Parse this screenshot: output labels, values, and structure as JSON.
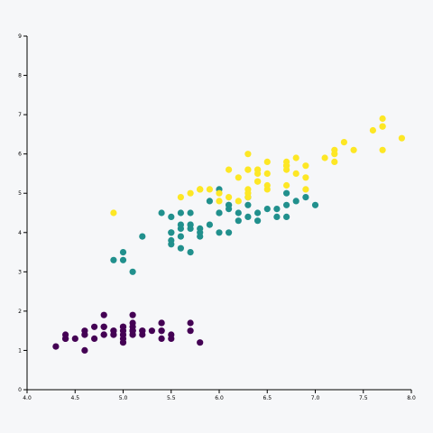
{
  "chart_data": {
    "type": "scatter",
    "xlim": [
      4.0,
      8.0
    ],
    "ylim": [
      0,
      9
    ],
    "x_ticks": [
      "4.0",
      "4.5",
      "5.0",
      "5.5",
      "6.0",
      "6.5",
      "7.0",
      "7.5",
      "8.0"
    ],
    "y_ticks": [
      "0",
      "1",
      "2",
      "3",
      "4",
      "5",
      "6",
      "7",
      "8",
      "9"
    ],
    "grid": false,
    "legend": "none",
    "series": [
      {
        "color": "#440154",
        "points": [
          [
            5.1,
            1.4
          ],
          [
            4.9,
            1.4
          ],
          [
            4.7,
            1.3
          ],
          [
            4.6,
            1.5
          ],
          [
            5.0,
            1.4
          ],
          [
            5.4,
            1.7
          ],
          [
            4.6,
            1.4
          ],
          [
            5.0,
            1.5
          ],
          [
            4.4,
            1.4
          ],
          [
            4.9,
            1.5
          ],
          [
            5.4,
            1.5
          ],
          [
            4.8,
            1.6
          ],
          [
            4.8,
            1.4
          ],
          [
            4.3,
            1.1
          ],
          [
            5.8,
            1.2
          ],
          [
            5.7,
            1.5
          ],
          [
            5.4,
            1.3
          ],
          [
            5.1,
            1.4
          ],
          [
            5.7,
            1.7
          ],
          [
            5.1,
            1.5
          ],
          [
            5.4,
            1.7
          ],
          [
            5.1,
            1.5
          ],
          [
            4.6,
            1.0
          ],
          [
            5.1,
            1.7
          ],
          [
            4.8,
            1.9
          ],
          [
            5.0,
            1.6
          ],
          [
            5.0,
            1.6
          ],
          [
            5.2,
            1.5
          ],
          [
            5.2,
            1.4
          ],
          [
            4.7,
            1.6
          ],
          [
            4.8,
            1.6
          ],
          [
            5.4,
            1.5
          ],
          [
            5.2,
            1.5
          ],
          [
            5.5,
            1.4
          ],
          [
            4.9,
            1.5
          ],
          [
            5.0,
            1.2
          ],
          [
            5.5,
            1.3
          ],
          [
            4.9,
            1.4
          ],
          [
            4.4,
            1.3
          ],
          [
            5.1,
            1.5
          ],
          [
            5.0,
            1.3
          ],
          [
            4.5,
            1.3
          ],
          [
            4.4,
            1.3
          ],
          [
            5.0,
            1.6
          ],
          [
            5.1,
            1.9
          ],
          [
            4.8,
            1.4
          ],
          [
            5.1,
            1.6
          ],
          [
            4.6,
            1.4
          ],
          [
            5.3,
            1.5
          ],
          [
            5.0,
            1.4
          ]
        ]
      },
      {
        "color": "#21908d",
        "points": [
          [
            7.0,
            4.7
          ],
          [
            6.4,
            4.5
          ],
          [
            6.9,
            4.9
          ],
          [
            5.5,
            4.0
          ],
          [
            6.5,
            4.6
          ],
          [
            5.7,
            4.5
          ],
          [
            6.3,
            4.7
          ],
          [
            4.9,
            3.3
          ],
          [
            6.6,
            4.6
          ],
          [
            5.2,
            3.9
          ],
          [
            5.0,
            3.5
          ],
          [
            5.9,
            4.2
          ],
          [
            6.0,
            4.0
          ],
          [
            6.1,
            4.7
          ],
          [
            5.6,
            3.6
          ],
          [
            6.7,
            4.4
          ],
          [
            5.6,
            4.5
          ],
          [
            5.8,
            4.1
          ],
          [
            6.2,
            4.5
          ],
          [
            5.6,
            3.9
          ],
          [
            5.9,
            4.8
          ],
          [
            6.1,
            4.0
          ],
          [
            6.3,
            4.9
          ],
          [
            6.1,
            4.7
          ],
          [
            6.4,
            4.3
          ],
          [
            6.6,
            4.4
          ],
          [
            6.8,
            4.8
          ],
          [
            6.7,
            5.0
          ],
          [
            6.0,
            4.5
          ],
          [
            5.7,
            3.5
          ],
          [
            5.5,
            3.8
          ],
          [
            5.5,
            3.7
          ],
          [
            5.8,
            3.9
          ],
          [
            6.0,
            5.1
          ],
          [
            5.4,
            4.5
          ],
          [
            6.0,
            4.5
          ],
          [
            6.7,
            4.7
          ],
          [
            6.3,
            4.4
          ],
          [
            5.6,
            4.1
          ],
          [
            5.5,
            4.0
          ],
          [
            5.5,
            4.4
          ],
          [
            6.1,
            4.6
          ],
          [
            5.8,
            4.0
          ],
          [
            5.0,
            3.3
          ],
          [
            5.6,
            4.2
          ],
          [
            5.7,
            4.2
          ],
          [
            5.7,
            4.2
          ],
          [
            6.2,
            4.3
          ],
          [
            5.1,
            3.0
          ],
          [
            5.7,
            4.1
          ]
        ]
      },
      {
        "color": "#fde725",
        "points": [
          [
            6.3,
            6.0
          ],
          [
            5.8,
            5.1
          ],
          [
            7.1,
            5.9
          ],
          [
            6.3,
            5.6
          ],
          [
            6.5,
            5.8
          ],
          [
            7.6,
            6.6
          ],
          [
            4.9,
            4.5
          ],
          [
            7.3,
            6.3
          ],
          [
            6.7,
            5.8
          ],
          [
            7.2,
            6.1
          ],
          [
            6.5,
            5.1
          ],
          [
            6.4,
            5.3
          ],
          [
            6.8,
            5.5
          ],
          [
            5.7,
            5.0
          ],
          [
            5.8,
            5.1
          ],
          [
            6.4,
            5.3
          ],
          [
            6.5,
            5.5
          ],
          [
            7.7,
            6.7
          ],
          [
            7.7,
            6.9
          ],
          [
            6.0,
            5.0
          ],
          [
            6.9,
            5.7
          ],
          [
            5.6,
            4.9
          ],
          [
            7.7,
            6.7
          ],
          [
            6.3,
            4.9
          ],
          [
            6.7,
            5.7
          ],
          [
            7.2,
            6.0
          ],
          [
            6.2,
            4.8
          ],
          [
            6.1,
            4.9
          ],
          [
            6.4,
            5.6
          ],
          [
            7.2,
            5.8
          ],
          [
            7.4,
            6.1
          ],
          [
            7.9,
            6.4
          ],
          [
            6.4,
            5.6
          ],
          [
            6.3,
            5.1
          ],
          [
            6.1,
            5.6
          ],
          [
            7.7,
            6.1
          ],
          [
            6.3,
            5.6
          ],
          [
            6.4,
            5.5
          ],
          [
            6.0,
            4.8
          ],
          [
            6.9,
            5.4
          ],
          [
            6.7,
            5.6
          ],
          [
            6.9,
            5.1
          ],
          [
            5.8,
            5.1
          ],
          [
            6.8,
            5.9
          ],
          [
            6.7,
            5.7
          ],
          [
            6.7,
            5.2
          ],
          [
            6.3,
            5.0
          ],
          [
            6.5,
            5.2
          ],
          [
            6.2,
            5.4
          ],
          [
            5.9,
            5.1
          ]
        ]
      }
    ]
  }
}
